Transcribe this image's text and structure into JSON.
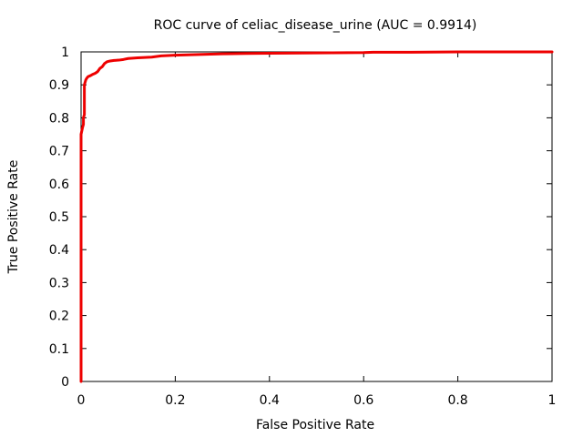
{
  "chart_data": {
    "type": "line",
    "title": "ROC curve of celiac_disease_urine (AUC = 0.9914)",
    "xlabel": "False Positive Rate",
    "ylabel": "True Positive Rate",
    "xlim": [
      0,
      1
    ],
    "ylim": [
      0,
      1
    ],
    "x_ticks": [
      "0",
      "0.2",
      "0.4",
      "0.6",
      "0.8",
      "1"
    ],
    "y_ticks": [
      "0",
      "0.1",
      "0.2",
      "0.3",
      "0.4",
      "0.5",
      "0.6",
      "0.7",
      "0.8",
      "0.9",
      "1"
    ],
    "grid": false,
    "legend": "none",
    "colors": {
      "curve": "#ee0000",
      "axes": "#000000"
    },
    "series": [
      {
        "x": [
          0.0,
          0.0,
          0.003,
          0.005,
          0.005,
          0.007,
          0.007,
          0.01,
          0.012,
          0.015,
          0.02,
          0.025,
          0.03,
          0.035,
          0.04,
          0.045,
          0.05,
          0.055,
          0.06,
          0.07,
          0.08,
          0.09,
          0.1,
          0.12,
          0.15,
          0.17,
          0.2,
          0.25,
          0.3,
          0.35,
          0.4,
          0.5,
          0.6,
          0.62,
          0.7,
          0.8,
          0.9,
          1.0
        ],
        "y": [
          0.0,
          0.75,
          0.77,
          0.78,
          0.8,
          0.81,
          0.9,
          0.915,
          0.92,
          0.925,
          0.928,
          0.932,
          0.935,
          0.94,
          0.95,
          0.955,
          0.965,
          0.97,
          0.972,
          0.974,
          0.975,
          0.977,
          0.98,
          0.982,
          0.984,
          0.988,
          0.99,
          0.992,
          0.994,
          0.995,
          0.996,
          0.997,
          0.998,
          0.999,
          0.999,
          1.0,
          1.0,
          1.0
        ]
      }
    ]
  }
}
